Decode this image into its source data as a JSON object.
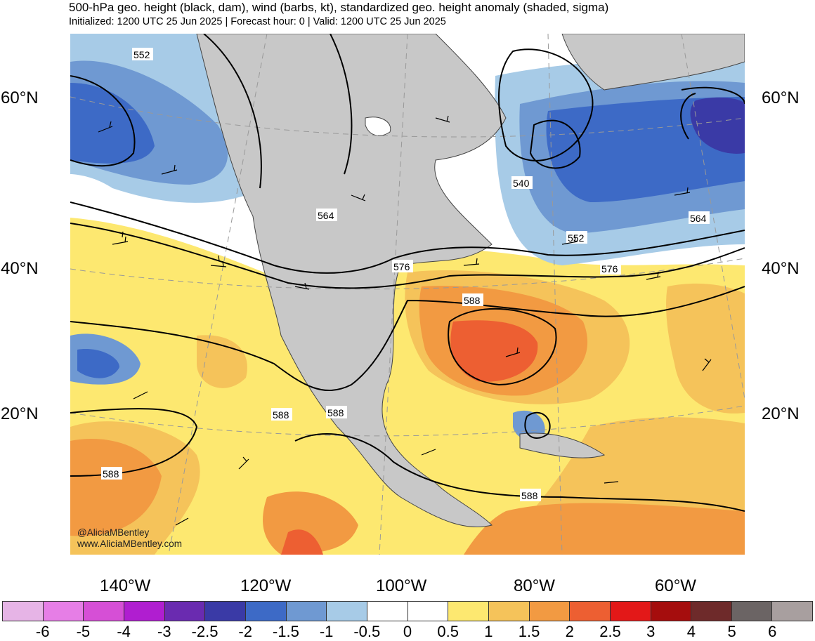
{
  "title": "500-hPa geo. height (black, dam), wind (barbs, kt), standardized geo. height anomaly (shaded, sigma)",
  "subtitle": "Initialized: 1200 UTC 25 Jun 2025 | Forecast hour: 0 | Valid: 1200 UTC 25 Jun 2025",
  "credit": {
    "handle": "@AliciaMBentley",
    "website": "www.AliciaMBentley.com"
  },
  "lat_labels": [
    "60°N",
    "40°N",
    "20°N"
  ],
  "lon_labels": [
    "140°W",
    "120°W",
    "100°W",
    "80°W",
    "60°W"
  ],
  "contour_labels": [
    "552",
    "540",
    "564",
    "552",
    "564",
    "576",
    "576",
    "588",
    "588",
    "588",
    "588",
    "588"
  ],
  "colorbar": {
    "tick_labels": [
      "-6",
      "-5",
      "-4",
      "-3",
      "-2.5",
      "-2",
      "-1.5",
      "-1",
      "-0.5",
      "0",
      "0.5",
      "1",
      "1.5",
      "2",
      "2.5",
      "3",
      "4",
      "5",
      "6"
    ],
    "colors": [
      "#e6b4e6",
      "#e67ee6",
      "#d64fd6",
      "#b01ed0",
      "#6a2bb0",
      "#3a3aa6",
      "#3d6ac6",
      "#6f99d2",
      "#a7cbe7",
      "#ffffff",
      "#ffffff",
      "#fde870",
      "#f5c35a",
      "#f29a42",
      "#ed5f32",
      "#e31818",
      "#a50d0d",
      "#6e2a2a",
      "#6b6464",
      "#a89f9f"
    ]
  },
  "colors": {
    "land": "#c8c8c8",
    "coast": "#444444",
    "contour": "#000000"
  }
}
